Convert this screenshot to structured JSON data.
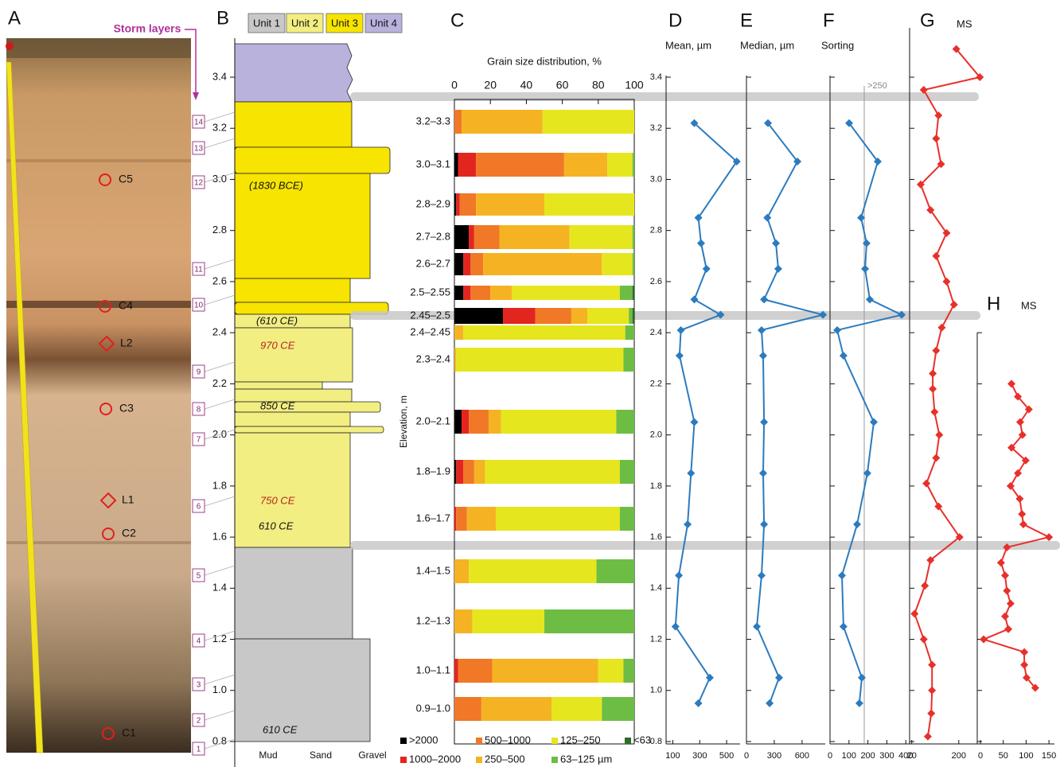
{
  "photo": {
    "panel": "A",
    "storm_label": "Storm layers",
    "samples": [
      "C5",
      "C4",
      "L2",
      "C3",
      "L1",
      "C2",
      "C1"
    ]
  },
  "column": {
    "panel": "B",
    "units": [
      "Unit 1",
      "Unit 2",
      "Unit 3",
      "Unit 4"
    ],
    "unit_colors": [
      "#c8c8c8",
      "#f3ee82",
      "#f7e400",
      "#b8b2dc"
    ],
    "ylim": [
      0.8,
      3.4
    ],
    "yticks": [
      0.8,
      {
        "value": 1,
        "label": "1.0"
      },
      1.2,
      1.4,
      1.6,
      1.8,
      {
        "value": 2,
        "label": "2.0"
      },
      2.2,
      2.4,
      2.6,
      2.8,
      {
        "value": 3,
        "label": "3.0"
      },
      3.2,
      3.4
    ],
    "x_labels": [
      "Mud",
      "Sand",
      "Gravel"
    ],
    "sample_numbers": [
      "14",
      "13",
      "12",
      "11",
      "10",
      "9",
      "8",
      "7",
      "6",
      "5",
      "4",
      "3",
      "2",
      "1"
    ],
    "ages": [
      "(1830 BCE)",
      "(610 CE)",
      "970 CE",
      "850 CE",
      "750 CE",
      "610 CE",
      "610 CE"
    ]
  },
  "chart_data": [
    {
      "type": "bar",
      "panel": "C",
      "title": "Grain size distribution, %",
      "y_label": "Elevation, m",
      "stacked": true,
      "orientation": "horizontal",
      "categories": [
        "3.2–3.3",
        "3.0–3.1",
        "2.8–2.9",
        "2.7–2.8",
        "2.6–2.7",
        "2.5–2.55",
        "2.45–2.5",
        "2.4–2.45",
        "2.3–2.4",
        "2.0–2.1",
        "1.8–1.9",
        "1.6–1.7",
        "1.4–1.5",
        "1.2–1.3",
        "1.0–1.1",
        "0.9–1.0"
      ],
      "xlim": [
        0,
        100
      ],
      "xticks": [
        0,
        20,
        40,
        60,
        80,
        100
      ],
      "series": [
        {
          "name": ">2000",
          "color": "#000000",
          "values": [
            0,
            2,
            1,
            8,
            5,
            5,
            27,
            0,
            0,
            4,
            1,
            0,
            0,
            0,
            0,
            0
          ]
        },
        {
          "name": "1000–2000",
          "color": "#e3251f",
          "values": [
            0,
            10,
            2,
            3,
            4,
            4,
            18,
            0,
            0,
            4,
            4,
            1,
            0,
            0,
            2,
            0
          ]
        },
        {
          "name": "500–1000",
          "color": "#f07826",
          "values": [
            4,
            49,
            9,
            14,
            7,
            11,
            20,
            0,
            0,
            11,
            6,
            6,
            0,
            0,
            19,
            15
          ]
        },
        {
          "name": "250–500",
          "color": "#f5b323",
          "values": [
            45,
            24,
            38,
            39,
            66,
            12,
            9,
            5,
            1,
            7,
            6,
            16,
            8,
            10,
            59,
            39
          ]
        },
        {
          "name": "125–250",
          "color": "#e6e61e",
          "values": [
            51,
            14,
            50,
            35,
            17,
            60,
            23,
            90,
            93,
            64,
            75,
            69,
            71,
            40,
            14,
            28
          ]
        },
        {
          "name": "63–125 µm",
          "color": "#6dbd45",
          "values": [
            0,
            1,
            0,
            1,
            1,
            7,
            2,
            5,
            6,
            10,
            8,
            8,
            21,
            50,
            6,
            18
          ]
        },
        {
          "name": "<63",
          "color": "#2f6b2a",
          "values": [
            0,
            0,
            0,
            0,
            0,
            1,
            1,
            0,
            0,
            0,
            0,
            0,
            0,
            0,
            0,
            0
          ]
        }
      ]
    },
    {
      "type": "line",
      "panel": "D",
      "title": "Mean, µm",
      "color": "#2b7bbf",
      "values": [
        260,
        575,
        290,
        310,
        350,
        260,
        455,
        160,
        150,
        260,
        235,
        210,
        145,
        120,
        375,
        290
      ],
      "elevation": [
        3.22,
        3.07,
        2.85,
        2.75,
        2.65,
        2.53,
        2.47,
        2.41,
        2.31,
        2.05,
        1.85,
        1.65,
        1.45,
        1.25,
        1.05,
        0.95
      ],
      "xlim": [
        50,
        600
      ],
      "xticks": [
        100,
        300,
        500
      ],
      "ylim": [
        0.8,
        3.4
      ],
      "yticks": [
        0.8,
        {
          "value": 1,
          "label": "1.0"
        },
        1.2,
        1.4,
        1.6,
        1.8,
        {
          "value": 2,
          "label": "2.0"
        },
        2.2,
        2.4,
        2.6,
        2.8,
        {
          "value": 3,
          "label": "3.0"
        },
        3.2,
        3.4
      ]
    },
    {
      "type": "line",
      "panel": "E",
      "title": "Median, µm",
      "color": "#2b7bbf",
      "values": [
        232,
        550,
        225,
        318,
        343,
        190,
        825,
        163,
        180,
        190,
        180,
        190,
        163,
        112,
        352,
        250
      ],
      "elevation": [
        3.22,
        3.07,
        2.85,
        2.75,
        2.65,
        2.53,
        2.47,
        2.41,
        2.31,
        2.05,
        1.85,
        1.65,
        1.45,
        1.25,
        1.05,
        0.95
      ],
      "xlim": [
        0,
        850
      ],
      "xticks": [
        0,
        300,
        600
      ],
      "ylim": [
        0.8,
        3.4
      ]
    },
    {
      "type": "line",
      "panel": "F",
      "title": "Sorting",
      "annotation": ">250",
      "color": "#2b7bbf",
      "values": [
        101,
        252,
        164,
        193,
        185,
        210,
        378,
        38,
        71,
        231,
        197,
        143,
        63,
        71,
        168,
        155
      ],
      "elevation": [
        3.22,
        3.07,
        2.85,
        2.75,
        2.65,
        2.53,
        2.47,
        2.41,
        2.31,
        2.05,
        1.85,
        1.65,
        1.45,
        1.25,
        1.05,
        0.95
      ],
      "xlim": [
        0,
        420
      ],
      "xticks": [
        0,
        100,
        200,
        300,
        400
      ],
      "ylim": [
        0.8,
        3.4
      ]
    },
    {
      "type": "line",
      "panel": "G",
      "title": "MS",
      "color": "#e8302a",
      "log_x": true,
      "values": [
        177,
        561,
        36,
        74,
        66,
        84,
        31,
        50,
        110,
        66,
        110,
        158,
        87,
        66,
        56,
        56,
        61,
        77,
        66,
        41,
        74,
        208,
        50,
        38,
        23,
        36,
        54,
        54,
        52,
        44
      ],
      "elevation": [
        3.51,
        3.4,
        3.35,
        3.25,
        3.16,
        3.06,
        2.98,
        2.88,
        2.79,
        2.7,
        2.6,
        2.51,
        2.42,
        2.33,
        2.24,
        2.18,
        2.09,
        2.0,
        1.91,
        1.81,
        1.72,
        1.6,
        1.51,
        1.41,
        1.3,
        1.2,
        1.1,
        1.0,
        0.91,
        0.82
      ],
      "xlim": [
        18,
        600
      ],
      "xticks": [
        20,
        200
      ],
      "ylim": [
        0.8,
        3.4
      ]
    },
    {
      "type": "line",
      "panel": "H",
      "title": "MS",
      "color": "#e8302a",
      "values": [
        68,
        82,
        106,
        87,
        92,
        68,
        99,
        82,
        66,
        86,
        91,
        94,
        150,
        58,
        45,
        54,
        58,
        66,
        54,
        61,
        7,
        96,
        96,
        101,
        120
      ],
      "elevation": [
        2.2,
        2.15,
        2.1,
        2.05,
        2.0,
        1.95,
        1.9,
        1.85,
        1.8,
        1.75,
        1.69,
        1.65,
        1.6,
        1.56,
        1.5,
        1.45,
        1.39,
        1.34,
        1.29,
        1.24,
        1.2,
        1.15,
        1.1,
        1.05,
        1.01
      ],
      "xlim": [
        -7,
        162
      ],
      "xticks": [
        0,
        50,
        100,
        150
      ],
      "ylim": [
        0.8,
        3.4
      ]
    }
  ]
}
